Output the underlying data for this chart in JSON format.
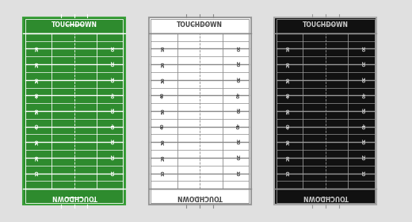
{
  "background_color": "#e0e0e0",
  "fields": [
    {
      "field_bg": "#2e8b2e",
      "outer_border": "#3aa03a",
      "line_color": "#ffffff",
      "text_color": "#ffffff",
      "label": "green"
    },
    {
      "field_bg": "#ffffff",
      "outer_border": "#999999",
      "line_color": "#888888",
      "text_color": "#444444",
      "label": "white"
    },
    {
      "field_bg": "#111111",
      "outer_border": "#aaaaaa",
      "line_color": "#999999",
      "text_color": "#cccccc",
      "label": "black"
    }
  ],
  "yard_labels": [
    10,
    20,
    30,
    40,
    50,
    40,
    30,
    20,
    10
  ],
  "title": "TOUCHDOWN",
  "figsize": [
    5.2,
    2.8
  ],
  "dpi": 100
}
